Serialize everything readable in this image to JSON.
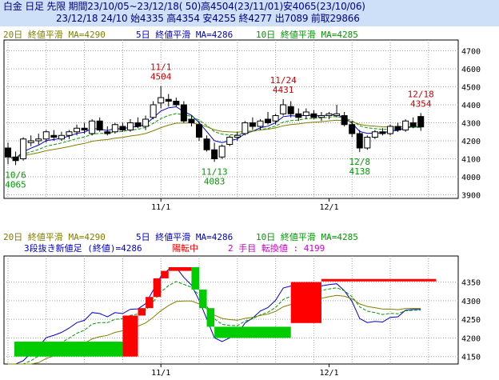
{
  "header": {
    "line1": "白金 日足 先限 期間23/10/05~23/12/18( 50)高4504(23/11/01)安4065(23/10/06)",
    "line2": "23/12/18 24/10 始4335 高4354 安4255 終4277 出7089 前取29866"
  },
  "colors": {
    "bg": "#ffffff",
    "frame": "#000000",
    "grid": "#a0a0a0",
    "ma20": "#808000",
    "ma5": "#0000cc",
    "ma10": "#009900",
    "up": "#ff0000",
    "down": "#00cc00",
    "annot_high": "#cc0000",
    "annot_low": "#009900",
    "header_band": "#cde0f8",
    "header_text": "#000080",
    "magenta": "#cc00cc"
  },
  "chart_data": [
    {
      "type": "candlestick",
      "legend": {
        "ma20": "20日 終値平滑 MA=4290",
        "ma5": "5日 終値平滑 MA=4286",
        "ma10": "10日 終値平滑 MA=4285"
      },
      "x_ticks": [
        {
          "index": 20,
          "label": "11/1"
        },
        {
          "index": 42,
          "label": "12/1"
        }
      ],
      "y_ticks": [
        3900,
        4000,
        4100,
        4200,
        4300,
        4400,
        4500,
        4600,
        4700
      ],
      "ylim": [
        3880,
        4760
      ],
      "grid": true,
      "annotations": [
        {
          "index": 1,
          "date": "10/6",
          "value": "4065",
          "kind": "low"
        },
        {
          "index": 20,
          "date": "11/1",
          "value": "4504",
          "kind": "high"
        },
        {
          "index": 27,
          "date": "11/13",
          "value": "4083",
          "kind": "low"
        },
        {
          "index": 36,
          "date": "11/24",
          "value": "4431",
          "kind": "high"
        },
        {
          "index": 46,
          "date": "12/8",
          "value": "4138",
          "kind": "low"
        },
        {
          "index": 54,
          "date": "12/18",
          "value": "4354",
          "kind": "high"
        }
      ],
      "candles": [
        [
          4160,
          4190,
          4070,
          4110
        ],
        [
          4110,
          4140,
          4065,
          4090
        ],
        [
          4100,
          4220,
          4090,
          4210
        ],
        [
          4190,
          4230,
          4170,
          4200
        ],
        [
          4200,
          4240,
          4180,
          4210
        ],
        [
          4210,
          4260,
          4190,
          4250
        ],
        [
          4230,
          4260,
          4200,
          4220
        ],
        [
          4210,
          4250,
          4200,
          4230
        ],
        [
          4230,
          4260,
          4210,
          4250
        ],
        [
          4250,
          4290,
          4230,
          4270
        ],
        [
          4270,
          4300,
          4240,
          4260
        ],
        [
          4240,
          4320,
          4230,
          4310
        ],
        [
          4310,
          4330,
          4250,
          4260
        ],
        [
          4250,
          4280,
          4230,
          4240
        ],
        [
          4250,
          4300,
          4240,
          4290
        ],
        [
          4280,
          4300,
          4250,
          4260
        ],
        [
          4260,
          4320,
          4250,
          4300
        ],
        [
          4300,
          4330,
          4270,
          4280
        ],
        [
          4280,
          4340,
          4260,
          4320
        ],
        [
          4330,
          4420,
          4320,
          4400
        ],
        [
          4410,
          4504,
          4380,
          4440
        ],
        [
          4430,
          4460,
          4390,
          4420
        ],
        [
          4420,
          4440,
          4390,
          4400
        ],
        [
          4400,
          4420,
          4300,
          4310
        ],
        [
          4320,
          4340,
          4280,
          4300
        ],
        [
          4290,
          4310,
          4200,
          4220
        ],
        [
          4210,
          4230,
          4140,
          4150
        ],
        [
          4150,
          4190,
          4083,
          4100
        ],
        [
          4110,
          4180,
          4100,
          4170
        ],
        [
          4180,
          4230,
          4170,
          4220
        ],
        [
          4220,
          4250,
          4200,
          4230
        ],
        [
          4240,
          4310,
          4230,
          4300
        ],
        [
          4300,
          4330,
          4260,
          4280
        ],
        [
          4280,
          4320,
          4260,
          4310
        ],
        [
          4320,
          4360,
          4290,
          4300
        ],
        [
          4310,
          4350,
          4290,
          4340
        ],
        [
          4350,
          4431,
          4340,
          4400
        ],
        [
          4390,
          4420,
          4330,
          4350
        ],
        [
          4350,
          4380,
          4310,
          4330
        ],
        [
          4340,
          4380,
          4320,
          4360
        ],
        [
          4350,
          4370,
          4320,
          4330
        ],
        [
          4330,
          4360,
          4310,
          4340
        ],
        [
          4340,
          4360,
          4320,
          4350
        ],
        [
          4340,
          4400,
          4330,
          4350
        ],
        [
          4340,
          4360,
          4280,
          4290
        ],
        [
          4290,
          4310,
          4220,
          4240
        ],
        [
          4240,
          4260,
          4138,
          4160
        ],
        [
          4160,
          4230,
          4150,
          4220
        ],
        [
          4220,
          4260,
          4210,
          4250
        ],
        [
          4250,
          4270,
          4230,
          4240
        ],
        [
          4240,
          4290,
          4230,
          4280
        ],
        [
          4280,
          4300,
          4250,
          4260
        ],
        [
          4260,
          4320,
          4250,
          4310
        ],
        [
          4300,
          4330,
          4270,
          4280
        ],
        [
          4335,
          4354,
          4255,
          4277
        ]
      ]
    },
    {
      "type": "three-line-break",
      "legend": {
        "ma20": "20日 終値平滑 MA=4290",
        "ma5": "5日 終値平滑 MA=4286",
        "ma10": "10日 終値平滑 MA=4285"
      },
      "subtitle": {
        "label": "3段抜き新値足 (終値)=4286",
        "status": "陽転中",
        "turn": "2 手目 転換値 : 4199"
      },
      "x_ticks": [
        {
          "index": 20,
          "label": "11/1"
        },
        {
          "index": 42,
          "label": "12/1"
        }
      ],
      "y_ticks": [
        4150,
        4200,
        4250,
        4300,
        4350
      ],
      "ylim": [
        4130,
        4420
      ],
      "turn_line": 4355,
      "blocks": [
        {
          "start": 0,
          "end": 15,
          "from": 4190,
          "to": 4150,
          "dir": "down"
        },
        {
          "start": 15,
          "end": 17,
          "from": 4150,
          "to": 4260,
          "dir": "up"
        },
        {
          "start": 17,
          "end": 18,
          "from": 4260,
          "to": 4280,
          "dir": "up"
        },
        {
          "start": 18,
          "end": 19,
          "from": 4280,
          "to": 4310,
          "dir": "up"
        },
        {
          "start": 19,
          "end": 20,
          "from": 4310,
          "to": 4360,
          "dir": "up"
        },
        {
          "start": 20,
          "end": 21,
          "from": 4360,
          "to": 4380,
          "dir": "up"
        },
        {
          "start": 21,
          "end": 24,
          "from": 4380,
          "to": 4390,
          "dir": "up"
        },
        {
          "start": 24,
          "end": 25,
          "from": 4390,
          "to": 4330,
          "dir": "down"
        },
        {
          "start": 25,
          "end": 26,
          "from": 4330,
          "to": 4280,
          "dir": "down"
        },
        {
          "start": 26,
          "end": 27,
          "from": 4280,
          "to": 4230,
          "dir": "down"
        },
        {
          "start": 27,
          "end": 37,
          "from": 4230,
          "to": 4200,
          "dir": "down"
        },
        {
          "start": 37,
          "end": 41,
          "from": 4240,
          "to": 4350,
          "dir": "up"
        }
      ]
    }
  ]
}
